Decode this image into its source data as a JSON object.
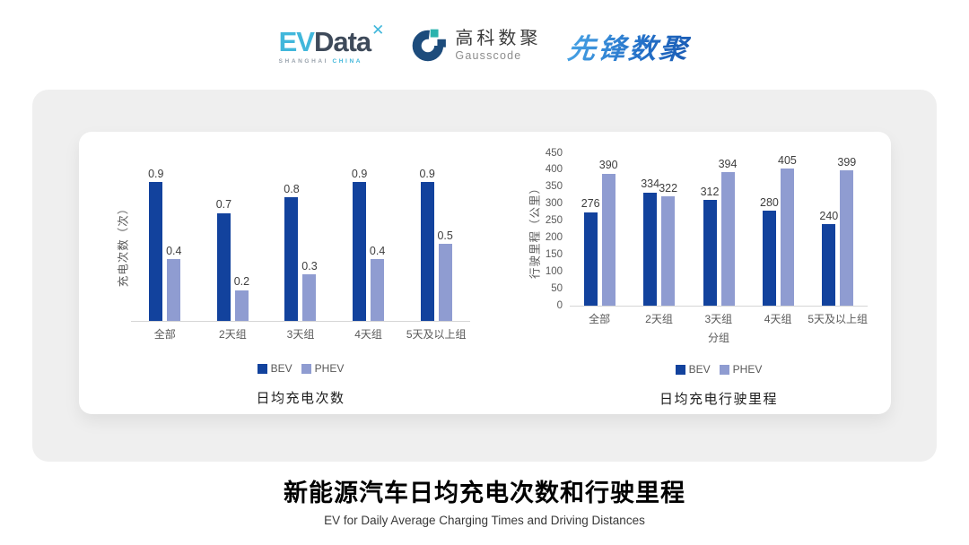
{
  "header": {
    "evdata": {
      "ev": "EV",
      "data": "Data",
      "star": "✕",
      "sub_left": "SHANGHAI",
      "sub_right": "CHINA"
    },
    "gausscode": {
      "cn": "高科数聚",
      "en": "Gausscode"
    },
    "pioneer": {
      "text": "先锋数聚"
    }
  },
  "colors": {
    "bev": "#12429d",
    "phev": "#8f9cd1",
    "logo_cyan": "#41b7db",
    "logo_dark": "#3e4a5a",
    "gauss_blue": "#1d4c7c",
    "gauss_teal": "#2ab3ae",
    "pioneer_blue": "#2e86d0",
    "card_gray": "#efefef"
  },
  "chart_data": [
    {
      "type": "bar",
      "title": "日均充电次数",
      "ylabel": "充电次数（次）",
      "xlabel": "",
      "categories": [
        "全部",
        "2天组",
        "3天组",
        "4天组",
        "5天及以上组"
      ],
      "series": [
        {
          "name": "BEV",
          "color": "#12429d",
          "values": [
            0.9,
            0.7,
            0.8,
            0.9,
            0.9
          ]
        },
        {
          "name": "PHEV",
          "color": "#8f9cd1",
          "values": [
            0.4,
            0.2,
            0.3,
            0.4,
            0.5
          ]
        }
      ],
      "ylim": [
        0,
        1.0
      ],
      "yticks": [],
      "grid": false,
      "value_labels": true,
      "legend_position": "bottom"
    },
    {
      "type": "bar",
      "title": "日均充电行驶里程",
      "ylabel": "行驶里程（公里）",
      "xlabel": "分组",
      "categories": [
        "全部",
        "2天组",
        "3天组",
        "4天组",
        "5天及以上组"
      ],
      "series": [
        {
          "name": "BEV",
          "color": "#12429d",
          "values": [
            276,
            334,
            312,
            280,
            240
          ]
        },
        {
          "name": "PHEV",
          "color": "#8f9cd1",
          "values": [
            390,
            322,
            394,
            405,
            399
          ]
        }
      ],
      "ylim": [
        0,
        450
      ],
      "yticks": [
        0,
        50,
        100,
        150,
        200,
        250,
        300,
        350,
        400,
        450
      ],
      "grid": false,
      "value_labels": true,
      "legend_position": "bottom"
    }
  ],
  "footer": {
    "title": "新能源汽车日均充电次数和行驶里程",
    "subtitle": "EV for Daily Average Charging Times and Driving Distances"
  }
}
